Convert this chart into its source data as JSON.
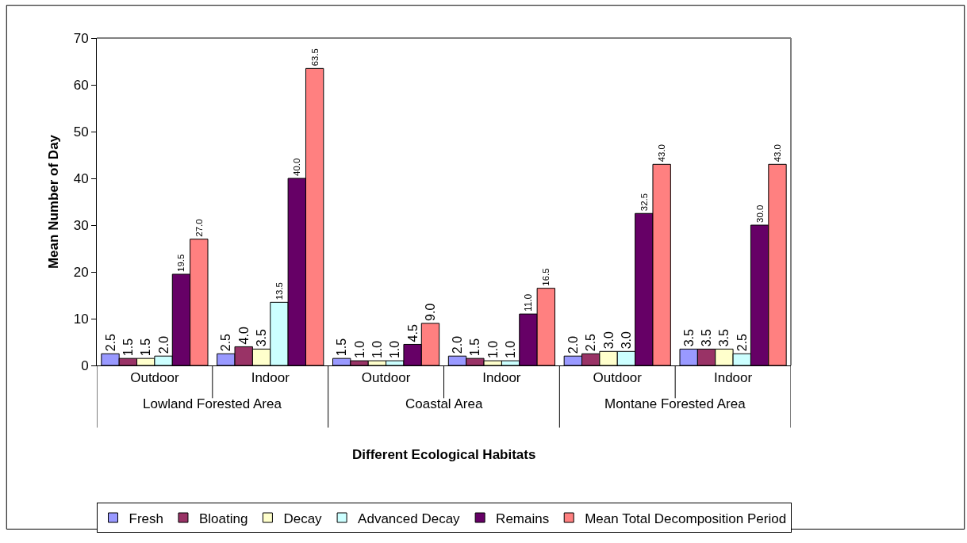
{
  "chart_data": {
    "type": "bar",
    "xlabel": "Different Ecological Habitats",
    "ylabel": "Mean Number of Day",
    "categories": [
      "Outdoor",
      "Indoor",
      "Outdoor",
      "Indoor",
      "Outdoor",
      "Indoor"
    ],
    "annotations": [
      "Lowland Forested Area",
      "Coastal Area",
      "Montane Forested Area"
    ],
    "ylim": [
      0,
      70
    ],
    "yticks": [
      0,
      10,
      20,
      30,
      40,
      50,
      60,
      70
    ],
    "grid": false,
    "legend": "bottom",
    "series": [
      {
        "name": "Fresh",
        "color": "#9999ff",
        "values": [
          2.5,
          2.5,
          1.5,
          2.0,
          2.0,
          3.5
        ],
        "value_labels": [
          "2.5",
          "2.5",
          "1.5",
          "2.0",
          "2.0",
          "3.5"
        ]
      },
      {
        "name": "Bloating",
        "color": "#993366",
        "values": [
          1.5,
          4.0,
          1.0,
          1.5,
          2.5,
          3.5
        ],
        "value_labels": [
          "1.5",
          "4.0",
          "1.0",
          "1.5",
          "2.5",
          "3.5"
        ]
      },
      {
        "name": "Decay",
        "color": "#ffffcc",
        "values": [
          1.5,
          3.5,
          1.0,
          1.0,
          3.0,
          3.5
        ],
        "value_labels": [
          "1.5",
          "3.5",
          "1.0",
          "1.0",
          "3.0",
          "3.5"
        ]
      },
      {
        "name": "Advanced Decay",
        "color": "#ccffff",
        "values": [
          2.0,
          13.5,
          1.0,
          1.0,
          3.0,
          2.5
        ],
        "value_labels": [
          "2.0",
          "13.5",
          "1.0",
          "1.0",
          "3.0",
          "2.5"
        ]
      },
      {
        "name": "Remains",
        "color": "#660066",
        "values": [
          19.5,
          40.0,
          4.5,
          11.0,
          32.5,
          30.0
        ],
        "value_labels": [
          "19.5",
          "40.0",
          "4.5",
          "11.0",
          "32.5",
          "30.0"
        ]
      },
      {
        "name": "Mean Total Decomposition Period",
        "color": "#ff8080",
        "values": [
          27.0,
          63.5,
          9.0,
          16.5,
          43.0,
          43.0
        ],
        "value_labels": [
          "27.0",
          "63.5",
          "9.0",
          "16.5",
          "43.0",
          "43.0"
        ]
      }
    ]
  }
}
